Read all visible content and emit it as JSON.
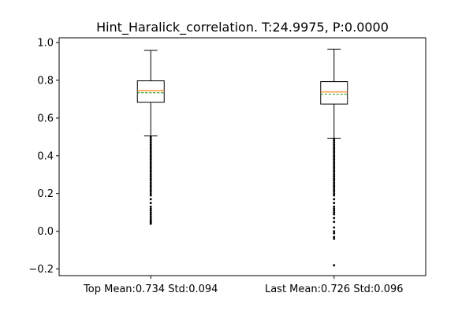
{
  "chart_data": {
    "type": "box",
    "title": "Hint_Haralick_correlation. T:24.9975, P:0.0000",
    "xlabel": "",
    "ylabel": "",
    "ylim": [
      -0.235,
      1.025
    ],
    "yticks": [
      -0.2,
      0.0,
      0.2,
      0.4,
      0.6,
      0.8,
      1.0
    ],
    "ytick_labels": [
      "−0.2",
      "0.0",
      "0.2",
      "0.4",
      "0.6",
      "0.8",
      "1.0"
    ],
    "grid": false,
    "colors": {
      "box": "#000000",
      "median": "#ff7f0e",
      "mean": "#2ca02c",
      "outlier": "#000000"
    },
    "groups": [
      {
        "label": "Top Mean:0.734 Std:0.094",
        "whisker_low": 0.505,
        "q1": 0.683,
        "median": 0.745,
        "q3": 0.797,
        "whisker_high": 0.958,
        "mean": 0.734,
        "outliers": [
          0.04,
          0.045,
          0.05,
          0.055,
          0.06,
          0.07,
          0.08,
          0.09,
          0.1,
          0.11,
          0.12,
          0.13,
          0.15,
          0.17,
          0.19,
          0.2,
          0.21,
          0.22,
          0.23,
          0.24,
          0.25,
          0.26,
          0.27,
          0.28,
          0.29,
          0.3,
          0.31,
          0.32,
          0.33,
          0.34,
          0.35,
          0.36,
          0.37,
          0.38,
          0.39,
          0.4,
          0.41,
          0.42,
          0.43,
          0.44,
          0.45,
          0.46,
          0.47,
          0.48,
          0.49,
          0.5
        ]
      },
      {
        "label": "Last Mean:0.726 Std:0.096",
        "whisker_low": 0.493,
        "q1": 0.674,
        "median": 0.738,
        "q3": 0.793,
        "whisker_high": 0.965,
        "mean": 0.726,
        "outliers": [
          -0.18,
          -0.04,
          -0.03,
          -0.01,
          0.0,
          0.02,
          0.05,
          0.07,
          0.09,
          0.1,
          0.11,
          0.12,
          0.13,
          0.15,
          0.17,
          0.19,
          0.2,
          0.21,
          0.22,
          0.23,
          0.24,
          0.25,
          0.26,
          0.27,
          0.28,
          0.29,
          0.3,
          0.31,
          0.32,
          0.33,
          0.34,
          0.35,
          0.36,
          0.37,
          0.38,
          0.39,
          0.4,
          0.41,
          0.42,
          0.43,
          0.44,
          0.45,
          0.46,
          0.47,
          0.48,
          0.49
        ]
      }
    ]
  }
}
